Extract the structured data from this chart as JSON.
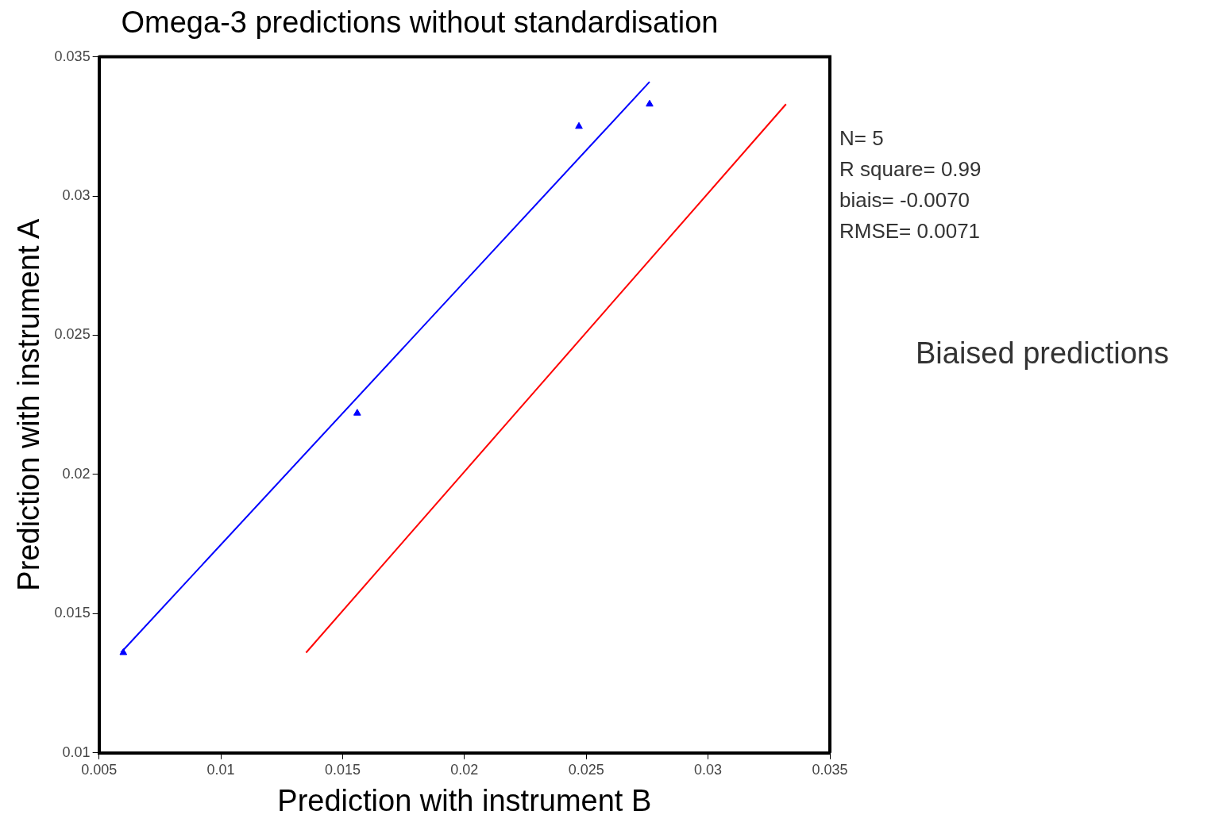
{
  "chart_data": {
    "type": "scatter",
    "title": "Omega-3 predictions without standardisation",
    "xlabel": "Prediction with instrument B",
    "ylabel": "Prediction with instrument A",
    "xlim": [
      0.005,
      0.035
    ],
    "xticks": [
      0.005,
      0.01,
      0.015,
      0.02,
      0.025,
      0.03,
      0.035
    ],
    "ylim": [
      0.01,
      0.035
    ],
    "yticks": [
      0.01,
      0.015,
      0.02,
      0.025,
      0.03,
      0.035
    ],
    "grid": false,
    "legend": false,
    "series": [
      {
        "marker": "triangle",
        "color": "#0000ff",
        "x": [
          0.006,
          0.0156,
          0.0247,
          0.0276
        ],
        "values": [
          0.0136,
          0.0222,
          0.0325,
          0.0333
        ]
      },
      {
        "type": "line",
        "marker": "none",
        "color": "#0000ff",
        "x": [
          0.0059,
          0.0276
        ],
        "values": [
          0.0136,
          0.0341
        ]
      },
      {
        "type": "line",
        "marker": "none",
        "color": "#ff0000",
        "x": [
          0.0135,
          0.0332
        ],
        "values": [
          0.0136,
          0.0333
        ]
      }
    ],
    "annotations": [
      "N= 5",
      "R square= 0.99",
      "biais= -0.0070",
      "RMSE= 0.0071",
      "Biaised predictions"
    ]
  }
}
